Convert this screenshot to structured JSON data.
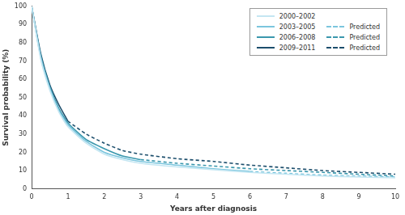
{
  "chart_data": {
    "type": "line",
    "x_label": "Years after diagnosis",
    "y_label": "Survival probability (%)",
    "x": [
      0,
      0.25,
      0.5,
      0.75,
      1,
      1.5,
      2,
      2.5,
      3,
      4,
      5,
      6,
      7,
      8,
      9,
      10
    ],
    "xlim": [
      0,
      10
    ],
    "xticks": [
      0,
      1,
      2,
      3,
      4,
      5,
      6,
      7,
      8,
      9,
      10
    ],
    "ylim": [
      0,
      100
    ],
    "yticks": [
      0,
      10,
      20,
      30,
      40,
      50,
      60,
      70,
      80,
      90,
      100
    ],
    "grid": false,
    "legend": "upper right",
    "series": [
      {
        "name": "2000–2002",
        "color": "#c4e6f2",
        "line_style": "solid",
        "values": [
          100,
          71,
          54,
          42,
          34,
          25,
          19,
          16,
          14,
          12,
          10.5,
          9,
          8,
          7,
          6.5,
          6
        ]
      },
      {
        "name": "2003–2005",
        "color": "#7cc6de",
        "line_style": "solid",
        "values": [
          100,
          72,
          55,
          43,
          35,
          26,
          20,
          17,
          15,
          13,
          11,
          9.5,
          null,
          null,
          null,
          null
        ]
      },
      {
        "name": "2006–2008",
        "color": "#3a97ad",
        "line_style": "solid",
        "values": [
          100,
          73,
          56,
          44,
          36,
          27,
          22,
          18,
          16,
          null,
          null,
          null,
          null,
          null,
          null,
          null
        ]
      },
      {
        "name": "2009–2011",
        "color": "#1c4e6c",
        "line_style": "solid",
        "values": [
          100,
          74,
          57,
          46,
          37,
          null,
          null,
          null,
          null,
          null,
          null,
          null,
          null,
          null,
          null,
          null
        ]
      },
      {
        "name": "Predicted",
        "color": "#7cc6de",
        "line_style": "dashed",
        "values": [
          null,
          null,
          null,
          null,
          null,
          null,
          null,
          null,
          null,
          null,
          null,
          9.5,
          8.5,
          7.5,
          7,
          6.5
        ]
      },
      {
        "name": "Predicted",
        "color": "#3a97ad",
        "line_style": "dashed",
        "values": [
          null,
          null,
          null,
          null,
          null,
          null,
          null,
          null,
          16,
          14,
          12.5,
          11,
          10,
          9,
          8,
          7
        ]
      },
      {
        "name": "Predicted",
        "color": "#1c4e6c",
        "line_style": "dashed",
        "values": [
          null,
          null,
          null,
          null,
          37,
          30,
          25,
          21,
          19,
          16.5,
          15,
          13,
          11.5,
          10,
          9,
          8
        ]
      }
    ]
  }
}
